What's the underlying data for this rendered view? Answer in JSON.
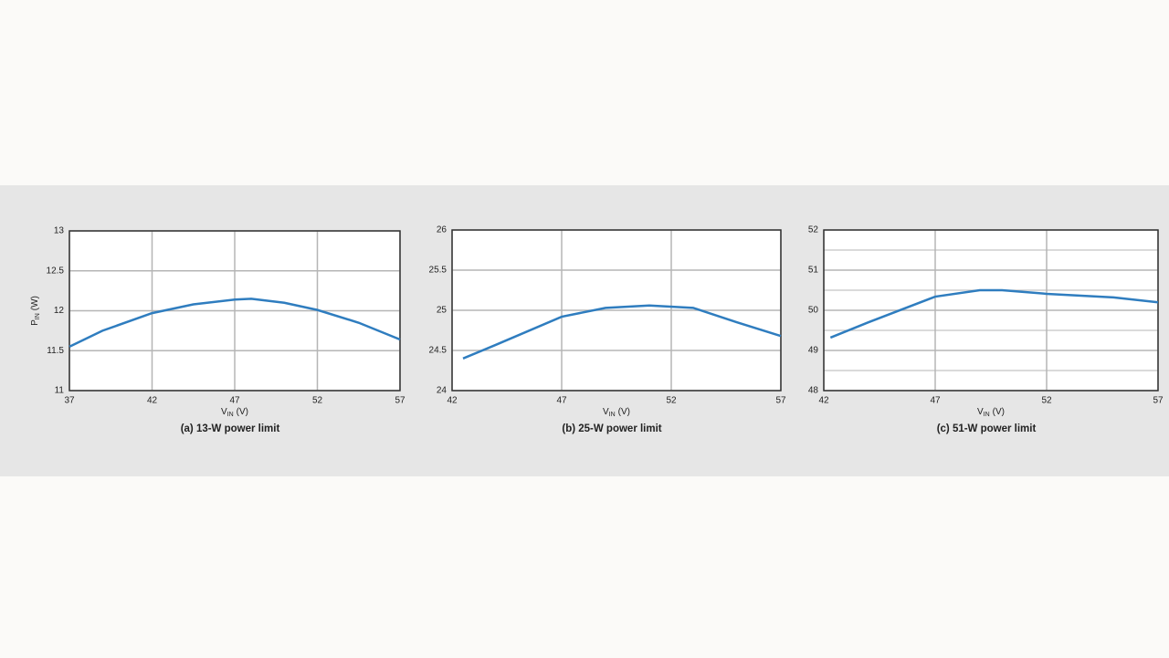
{
  "chart_data": [
    {
      "type": "line",
      "caption": "(a) 13-W power limit",
      "xlabel": {
        "main": "V",
        "sub": "IN",
        "unit": "(V)"
      },
      "ylabel": {
        "main": "P",
        "sub": "IN",
        "unit": "(W)"
      },
      "x": [
        37,
        39,
        42,
        44.5,
        47,
        48,
        50,
        52,
        54.5,
        57
      ],
      "series": [
        {
          "color": "#2f7dbf",
          "values": [
            11.55,
            11.75,
            11.97,
            12.08,
            12.14,
            12.15,
            12.1,
            12.01,
            11.85,
            11.64
          ]
        }
      ],
      "xlim": [
        37,
        57
      ],
      "xticks": [
        37,
        42,
        47,
        52,
        57
      ],
      "ylim": [
        11,
        13
      ],
      "yticks": [
        11,
        {
          "value": 11.5,
          "label": "11.5"
        },
        12,
        {
          "value": 12.5,
          "label": "12.5"
        },
        13
      ],
      "grid": true
    },
    {
      "type": "line",
      "caption": "(b) 25-W power limit",
      "xlabel": {
        "main": "V",
        "sub": "IN",
        "unit": "(V)"
      },
      "x": [
        42.5,
        44,
        47,
        49,
        51,
        53,
        55,
        57
      ],
      "series": [
        {
          "color": "#2f7dbf",
          "values": [
            24.4,
            24.57,
            24.92,
            25.03,
            25.06,
            25.03,
            24.85,
            24.68
          ]
        }
      ],
      "xlim": [
        42,
        57
      ],
      "xticks": [
        42,
        47,
        52,
        57
      ],
      "ylim": [
        24,
        26
      ],
      "yticks": [
        24,
        24.5,
        25,
        25.5,
        26
      ],
      "grid": true
    },
    {
      "type": "line",
      "caption": "(c) 51-W power limit",
      "xlabel": {
        "main": "V",
        "sub": "IN",
        "unit": "(V)"
      },
      "x": [
        42.3,
        44,
        47,
        49,
        50,
        52,
        55,
        57
      ],
      "series": [
        {
          "color": "#2f7dbf",
          "values": [
            49.32,
            49.7,
            50.34,
            50.5,
            50.5,
            50.41,
            50.32,
            50.2
          ]
        }
      ],
      "xlim": [
        42,
        57
      ],
      "xticks": [
        42,
        47,
        52,
        57
      ],
      "ylim": [
        48,
        52
      ],
      "yticks": [
        48,
        49,
        50,
        51,
        52
      ],
      "yminor": [
        48.5,
        49.5,
        50.5,
        51.5
      ],
      "grid": true
    }
  ]
}
